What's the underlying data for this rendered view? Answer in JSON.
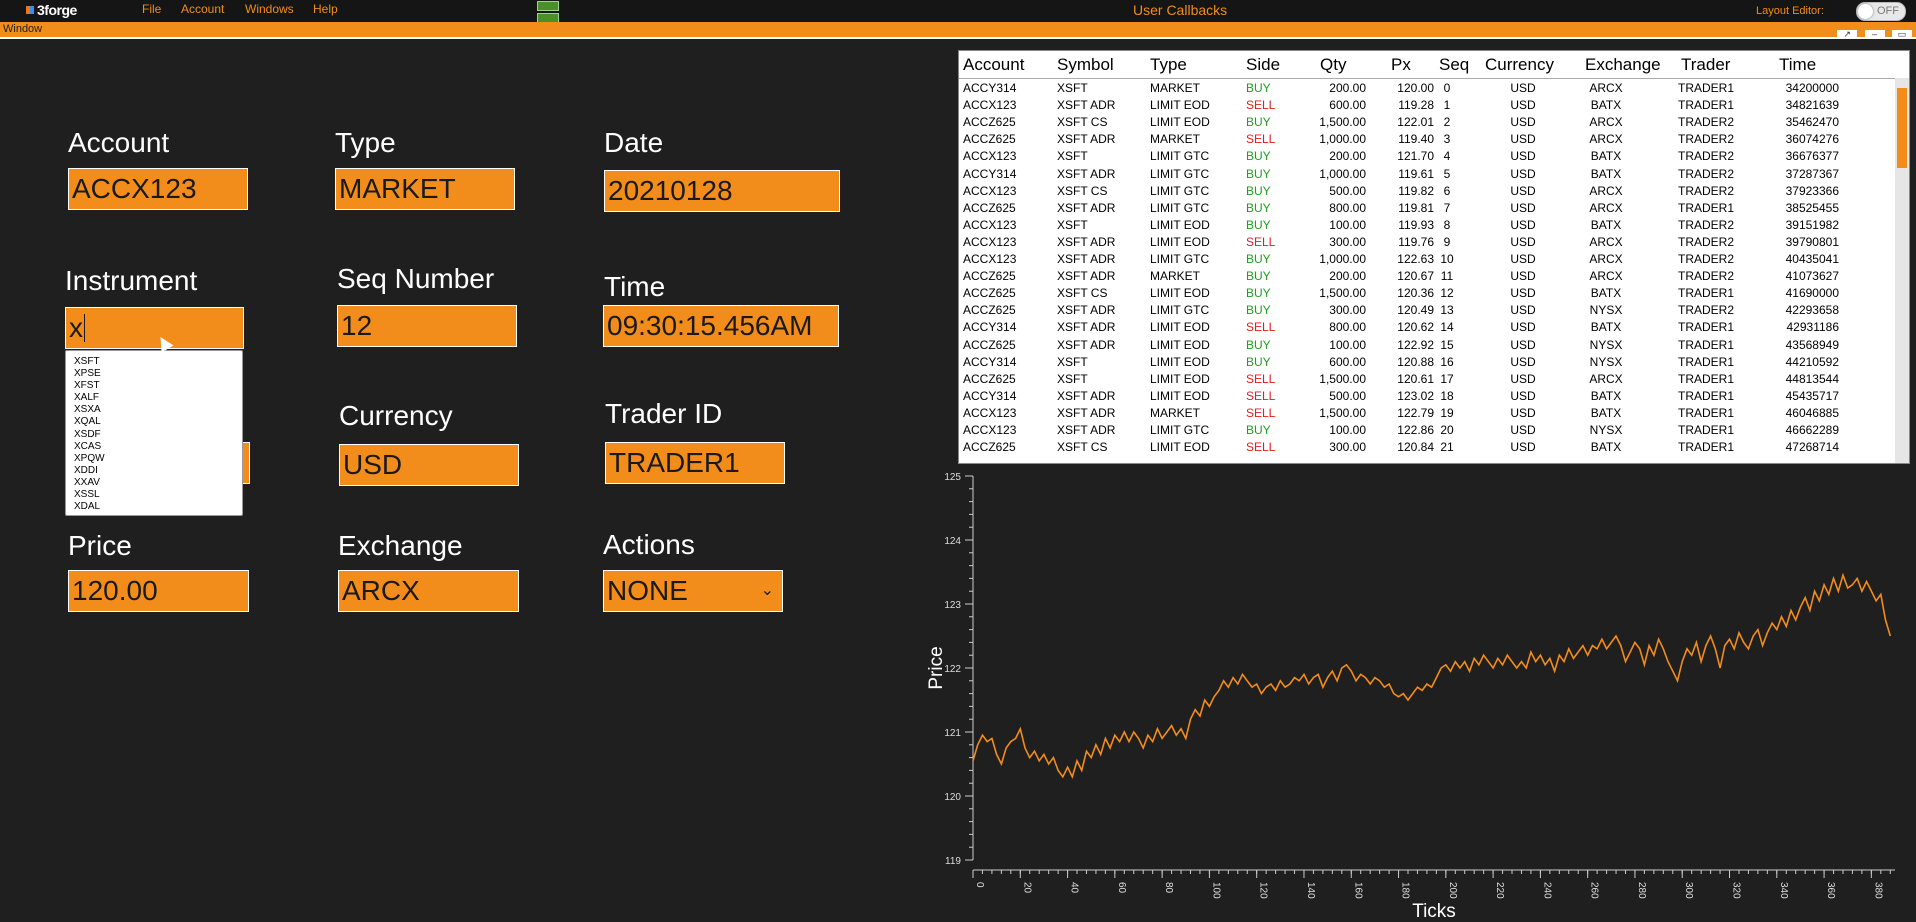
{
  "menu": {
    "logo": "3forge",
    "items": [
      "File",
      "Account",
      "Windows",
      "Help"
    ],
    "title": "User Callbacks",
    "layout_editor_label": "Layout Editor:",
    "toggle_state": "OFF"
  },
  "window": {
    "title": "Window"
  },
  "form": {
    "account": {
      "label": "Account",
      "value": "ACCX123"
    },
    "type": {
      "label": "Type",
      "value": "MARKET"
    },
    "date": {
      "label": "Date",
      "value": "20210128"
    },
    "instrument": {
      "label": "Instrument",
      "value": "x"
    },
    "seq": {
      "label": "Seq Number",
      "value": "12"
    },
    "time": {
      "label": "Time",
      "value": "09:30:15.456AM"
    },
    "currency": {
      "label": "Currency",
      "value": "USD"
    },
    "trader": {
      "label": "Trader ID",
      "value": "TRADER1"
    },
    "price": {
      "label": "Price",
      "value": "120.00"
    },
    "exchange": {
      "label": "Exchange",
      "value": "ARCX"
    },
    "actions": {
      "label": "Actions",
      "value": "NONE"
    },
    "dropdown_options": [
      "XSFT",
      "XPSE",
      "XFST",
      "XALF",
      "XSXA",
      "XQAL",
      "XSDF",
      "XCAS",
      "XPQW",
      "XDDI",
      "XXAV",
      "XSSL",
      "XDAL"
    ]
  },
  "table": {
    "columns": [
      "Account",
      "Symbol",
      "Type",
      "Side",
      "Qty",
      "Px",
      "Seq",
      "Currency",
      "Exchange",
      "Trader",
      "Time"
    ],
    "rows": [
      [
        "ACCY314",
        "XSFT",
        "MARKET",
        "BUY",
        "200.00",
        "120.00",
        "0",
        "USD",
        "ARCX",
        "TRADER1",
        "34200000"
      ],
      [
        "ACCX123",
        "XSFT ADR",
        "LIMIT EOD",
        "SELL",
        "600.00",
        "119.28",
        "1",
        "USD",
        "BATX",
        "TRADER1",
        "34821639"
      ],
      [
        "ACCZ625",
        "XSFT CS",
        "LIMIT EOD",
        "BUY",
        "1,500.00",
        "122.01",
        "2",
        "USD",
        "ARCX",
        "TRADER2",
        "35462470"
      ],
      [
        "ACCZ625",
        "XSFT ADR",
        "MARKET",
        "SELL",
        "1,000.00",
        "119.40",
        "3",
        "USD",
        "ARCX",
        "TRADER2",
        "36074276"
      ],
      [
        "ACCX123",
        "XSFT",
        "LIMIT GTC",
        "BUY",
        "200.00",
        "121.70",
        "4",
        "USD",
        "BATX",
        "TRADER2",
        "36676377"
      ],
      [
        "ACCY314",
        "XSFT ADR",
        "LIMIT GTC",
        "BUY",
        "1,000.00",
        "119.61",
        "5",
        "USD",
        "BATX",
        "TRADER2",
        "37287367"
      ],
      [
        "ACCX123",
        "XSFT CS",
        "LIMIT GTC",
        "BUY",
        "500.00",
        "119.82",
        "6",
        "USD",
        "ARCX",
        "TRADER2",
        "37923366"
      ],
      [
        "ACCZ625",
        "XSFT ADR",
        "LIMIT GTC",
        "BUY",
        "800.00",
        "119.81",
        "7",
        "USD",
        "ARCX",
        "TRADER1",
        "38525455"
      ],
      [
        "ACCX123",
        "XSFT",
        "LIMIT EOD",
        "BUY",
        "100.00",
        "119.93",
        "8",
        "USD",
        "BATX",
        "TRADER2",
        "39151982"
      ],
      [
        "ACCX123",
        "XSFT ADR",
        "LIMIT EOD",
        "SELL",
        "300.00",
        "119.76",
        "9",
        "USD",
        "ARCX",
        "TRADER2",
        "39790801"
      ],
      [
        "ACCX123",
        "XSFT ADR",
        "LIMIT GTC",
        "BUY",
        "1,000.00",
        "122.63",
        "10",
        "USD",
        "ARCX",
        "TRADER2",
        "40435041"
      ],
      [
        "ACCZ625",
        "XSFT ADR",
        "MARKET",
        "BUY",
        "200.00",
        "120.67",
        "11",
        "USD",
        "ARCX",
        "TRADER2",
        "41073627"
      ],
      [
        "ACCZ625",
        "XSFT CS",
        "LIMIT EOD",
        "BUY",
        "1,500.00",
        "120.36",
        "12",
        "USD",
        "BATX",
        "TRADER1",
        "41690000"
      ],
      [
        "ACCZ625",
        "XSFT ADR",
        "LIMIT GTC",
        "BUY",
        "300.00",
        "120.49",
        "13",
        "USD",
        "NYSX",
        "TRADER2",
        "42293658"
      ],
      [
        "ACCY314",
        "XSFT ADR",
        "LIMIT EOD",
        "SELL",
        "800.00",
        "120.62",
        "14",
        "USD",
        "BATX",
        "TRADER1",
        "42931186"
      ],
      [
        "ACCZ625",
        "XSFT ADR",
        "LIMIT EOD",
        "BUY",
        "100.00",
        "122.92",
        "15",
        "USD",
        "NYSX",
        "TRADER1",
        "43568949"
      ],
      [
        "ACCY314",
        "XSFT",
        "LIMIT EOD",
        "BUY",
        "600.00",
        "120.88",
        "16",
        "USD",
        "NYSX",
        "TRADER1",
        "44210592"
      ],
      [
        "ACCZ625",
        "XSFT",
        "LIMIT EOD",
        "SELL",
        "1,500.00",
        "120.61",
        "17",
        "USD",
        "ARCX",
        "TRADER1",
        "44813544"
      ],
      [
        "ACCY314",
        "XSFT ADR",
        "LIMIT EOD",
        "SELL",
        "500.00",
        "123.02",
        "18",
        "USD",
        "BATX",
        "TRADER1",
        "45435717"
      ],
      [
        "ACCX123",
        "XSFT ADR",
        "MARKET",
        "SELL",
        "1,500.00",
        "122.79",
        "19",
        "USD",
        "BATX",
        "TRADER1",
        "46046885"
      ],
      [
        "ACCX123",
        "XSFT ADR",
        "LIMIT GTC",
        "BUY",
        "100.00",
        "122.86",
        "20",
        "USD",
        "NYSX",
        "TRADER1",
        "46662289"
      ],
      [
        "ACCZ625",
        "XSFT CS",
        "LIMIT EOD",
        "SELL",
        "300.00",
        "120.84",
        "21",
        "USD",
        "BATX",
        "TRADER1",
        "47268714"
      ]
    ]
  },
  "chart_data": {
    "type": "line",
    "title": "",
    "xlabel": "Ticks",
    "ylabel": "Price",
    "xlim": [
      0,
      390
    ],
    "ylim": [
      119,
      125
    ],
    "x_ticks": [
      0,
      20,
      40,
      60,
      80,
      100,
      120,
      140,
      160,
      180,
      200,
      220,
      240,
      260,
      280,
      300,
      320,
      340,
      360,
      380
    ],
    "y_ticks": [
      119,
      120,
      121,
      122,
      123,
      124,
      125
    ],
    "color": "#f28c1b",
    "points": [
      [
        0,
        120.55
      ],
      [
        2,
        120.8
      ],
      [
        4,
        120.95
      ],
      [
        6,
        120.85
      ],
      [
        8,
        120.9
      ],
      [
        10,
        120.65
      ],
      [
        12,
        120.5
      ],
      [
        14,
        120.75
      ],
      [
        16,
        120.85
      ],
      [
        18,
        120.9
      ],
      [
        20,
        121.05
      ],
      [
        22,
        120.75
      ],
      [
        24,
        120.6
      ],
      [
        26,
        120.7
      ],
      [
        28,
        120.55
      ],
      [
        30,
        120.65
      ],
      [
        32,
        120.5
      ],
      [
        34,
        120.6
      ],
      [
        36,
        120.4
      ],
      [
        38,
        120.3
      ],
      [
        40,
        120.45
      ],
      [
        42,
        120.3
      ],
      [
        44,
        120.55
      ],
      [
        46,
        120.4
      ],
      [
        48,
        120.7
      ],
      [
        50,
        120.6
      ],
      [
        52,
        120.8
      ],
      [
        54,
        120.65
      ],
      [
        56,
        120.9
      ],
      [
        58,
        120.75
      ],
      [
        60,
        120.95
      ],
      [
        62,
        120.85
      ],
      [
        64,
        121.0
      ],
      [
        66,
        120.85
      ],
      [
        68,
        121.0
      ],
      [
        70,
        120.9
      ],
      [
        72,
        120.75
      ],
      [
        74,
        120.95
      ],
      [
        76,
        120.85
      ],
      [
        78,
        121.05
      ],
      [
        80,
        120.9
      ],
      [
        82,
        121.0
      ],
      [
        84,
        121.1
      ],
      [
        86,
        120.95
      ],
      [
        88,
        121.05
      ],
      [
        90,
        120.9
      ],
      [
        92,
        121.2
      ],
      [
        94,
        121.35
      ],
      [
        96,
        121.25
      ],
      [
        98,
        121.5
      ],
      [
        100,
        121.4
      ],
      [
        102,
        121.55
      ],
      [
        104,
        121.65
      ],
      [
        106,
        121.8
      ],
      [
        108,
        121.7
      ],
      [
        110,
        121.85
      ],
      [
        112,
        121.75
      ],
      [
        114,
        121.9
      ],
      [
        116,
        121.8
      ],
      [
        118,
        121.7
      ],
      [
        120,
        121.75
      ],
      [
        122,
        121.6
      ],
      [
        124,
        121.7
      ],
      [
        126,
        121.75
      ],
      [
        128,
        121.65
      ],
      [
        130,
        121.8
      ],
      [
        132,
        121.7
      ],
      [
        134,
        121.75
      ],
      [
        136,
        121.85
      ],
      [
        138,
        121.8
      ],
      [
        140,
        121.9
      ],
      [
        142,
        121.75
      ],
      [
        144,
        121.85
      ],
      [
        146,
        121.9
      ],
      [
        148,
        121.7
      ],
      [
        150,
        121.85
      ],
      [
        152,
        121.95
      ],
      [
        154,
        121.8
      ],
      [
        156,
        122.0
      ],
      [
        158,
        122.05
      ],
      [
        160,
        121.95
      ],
      [
        162,
        121.8
      ],
      [
        164,
        121.9
      ],
      [
        166,
        121.85
      ],
      [
        168,
        121.75
      ],
      [
        170,
        121.85
      ],
      [
        172,
        121.8
      ],
      [
        174,
        121.7
      ],
      [
        176,
        121.75
      ],
      [
        178,
        121.6
      ],
      [
        180,
        121.55
      ],
      [
        182,
        121.6
      ],
      [
        184,
        121.5
      ],
      [
        186,
        121.6
      ],
      [
        188,
        121.7
      ],
      [
        190,
        121.65
      ],
      [
        192,
        121.75
      ],
      [
        194,
        121.7
      ],
      [
        196,
        121.85
      ],
      [
        198,
        122.0
      ],
      [
        200,
        122.05
      ],
      [
        202,
        121.95
      ],
      [
        204,
        122.1
      ],
      [
        206,
        122.0
      ],
      [
        208,
        122.1
      ],
      [
        210,
        121.95
      ],
      [
        212,
        122.15
      ],
      [
        214,
        122.05
      ],
      [
        216,
        122.2
      ],
      [
        218,
        122.1
      ],
      [
        220,
        122.0
      ],
      [
        222,
        122.15
      ],
      [
        224,
        122.05
      ],
      [
        226,
        122.2
      ],
      [
        228,
        122.1
      ],
      [
        230,
        122.0
      ],
      [
        232,
        122.1
      ],
      [
        234,
        122.0
      ],
      [
        236,
        122.25
      ],
      [
        238,
        122.1
      ],
      [
        240,
        122.2
      ],
      [
        242,
        122.05
      ],
      [
        244,
        122.15
      ],
      [
        246,
        121.95
      ],
      [
        248,
        122.2
      ],
      [
        250,
        122.1
      ],
      [
        252,
        122.3
      ],
      [
        254,
        122.15
      ],
      [
        256,
        122.25
      ],
      [
        258,
        122.35
      ],
      [
        260,
        122.2
      ],
      [
        262,
        122.35
      ],
      [
        264,
        122.3
      ],
      [
        266,
        122.45
      ],
      [
        268,
        122.3
      ],
      [
        270,
        122.4
      ],
      [
        272,
        122.5
      ],
      [
        274,
        122.35
      ],
      [
        276,
        122.1
      ],
      [
        278,
        122.25
      ],
      [
        280,
        122.4
      ],
      [
        282,
        122.3
      ],
      [
        284,
        122.05
      ],
      [
        286,
        122.35
      ],
      [
        288,
        122.2
      ],
      [
        290,
        122.45
      ],
      [
        292,
        122.3
      ],
      [
        294,
        122.1
      ],
      [
        296,
        121.95
      ],
      [
        298,
        121.8
      ],
      [
        300,
        122.1
      ],
      [
        302,
        122.3
      ],
      [
        304,
        122.2
      ],
      [
        306,
        122.4
      ],
      [
        308,
        122.1
      ],
      [
        310,
        122.35
      ],
      [
        312,
        122.5
      ],
      [
        314,
        122.3
      ],
      [
        316,
        122.0
      ],
      [
        318,
        122.35
      ],
      [
        320,
        122.45
      ],
      [
        322,
        122.3
      ],
      [
        324,
        122.55
      ],
      [
        326,
        122.4
      ],
      [
        328,
        122.3
      ],
      [
        330,
        122.5
      ],
      [
        332,
        122.6
      ],
      [
        334,
        122.35
      ],
      [
        336,
        122.55
      ],
      [
        338,
        122.7
      ],
      [
        340,
        122.6
      ],
      [
        342,
        122.8
      ],
      [
        344,
        122.65
      ],
      [
        346,
        122.9
      ],
      [
        348,
        122.75
      ],
      [
        350,
        122.95
      ],
      [
        352,
        123.1
      ],
      [
        354,
        122.9
      ],
      [
        356,
        123.2
      ],
      [
        358,
        123.05
      ],
      [
        360,
        123.3
      ],
      [
        362,
        123.15
      ],
      [
        364,
        123.4
      ],
      [
        366,
        123.2
      ],
      [
        368,
        123.45
      ],
      [
        370,
        123.25
      ],
      [
        372,
        123.3
      ],
      [
        374,
        123.4
      ],
      [
        376,
        123.2
      ],
      [
        378,
        123.35
      ],
      [
        380,
        123.2
      ],
      [
        382,
        123.05
      ],
      [
        384,
        123.15
      ],
      [
        386,
        122.75
      ],
      [
        388,
        122.5
      ]
    ]
  }
}
